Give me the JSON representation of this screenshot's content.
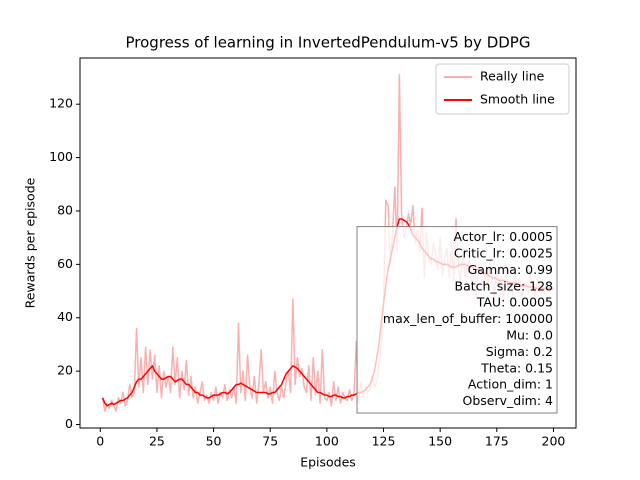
{
  "chart_data": {
    "type": "line",
    "title": "Progress of learning in InvertedPendulum-v5 by DDPG",
    "xlabel": "Episodes",
    "ylabel": "Rewards per episode",
    "x": [
      1,
      2,
      3,
      4,
      5,
      6,
      7,
      8,
      9,
      10,
      11,
      12,
      13,
      14,
      15,
      16,
      17,
      18,
      19,
      20,
      21,
      22,
      23,
      24,
      25,
      26,
      27,
      28,
      29,
      30,
      31,
      32,
      33,
      34,
      35,
      36,
      37,
      38,
      39,
      40,
      41,
      42,
      43,
      44,
      45,
      46,
      47,
      48,
      49,
      50,
      51,
      52,
      53,
      54,
      55,
      56,
      57,
      58,
      59,
      60,
      61,
      62,
      63,
      64,
      65,
      66,
      67,
      68,
      69,
      70,
      71,
      72,
      73,
      74,
      75,
      76,
      77,
      78,
      79,
      80,
      81,
      82,
      83,
      84,
      85,
      86,
      87,
      88,
      89,
      90,
      91,
      92,
      93,
      94,
      95,
      96,
      97,
      98,
      99,
      100,
      101,
      102,
      103,
      104,
      105,
      106,
      107,
      108,
      109,
      110,
      111,
      112,
      113,
      114,
      115,
      116,
      117,
      118,
      119,
      120,
      121,
      122,
      123,
      124,
      125,
      126,
      127,
      128,
      129,
      130,
      131,
      132,
      133,
      134,
      135,
      136,
      137,
      138,
      139,
      140,
      141,
      142,
      143,
      144,
      145,
      146,
      147,
      148,
      149,
      150,
      151,
      152,
      153,
      154,
      155,
      156,
      157,
      158,
      159,
      160,
      161,
      162,
      163,
      164,
      165,
      166,
      167,
      168,
      169,
      170,
      171,
      172,
      173,
      174,
      175,
      176,
      177,
      178,
      179,
      180,
      181,
      182,
      183,
      184,
      185,
      186,
      187,
      188,
      189,
      190,
      191,
      192,
      193,
      194,
      195,
      196,
      197,
      198,
      199,
      200
    ],
    "series": [
      {
        "name": "Really line",
        "color": "#f8b0b0",
        "values": [
          10,
          5,
          8,
          6,
          9,
          7,
          5,
          10,
          8,
          12,
          7,
          9,
          15,
          10,
          12,
          36,
          14,
          25,
          12,
          29,
          15,
          28,
          17,
          26,
          12,
          22,
          10,
          20,
          14,
          18,
          12,
          29,
          15,
          25,
          10,
          20,
          13,
          24,
          11,
          18,
          10,
          14,
          8,
          12,
          16,
          9,
          11,
          8,
          12,
          9,
          14,
          8,
          12,
          10,
          15,
          9,
          13,
          10,
          14,
          8,
          38,
          12,
          20,
          9,
          26,
          14,
          10,
          18,
          8,
          15,
          28,
          12,
          16,
          10,
          14,
          8,
          20,
          12,
          9,
          14,
          10,
          16,
          20,
          12,
          47,
          15,
          25,
          18,
          21,
          14,
          12,
          22,
          9,
          25,
          11,
          20,
          8,
          28,
          10,
          9,
          12,
          7,
          16,
          9,
          14,
          8,
          12,
          10,
          9,
          13,
          9,
          12,
          31,
          8,
          16,
          10,
          14,
          12,
          13,
          18,
          14,
          16,
          22,
          30,
          45,
          84,
          82,
          60,
          72,
          89,
          65,
          131,
          78,
          70,
          72,
          79,
          75,
          82,
          68,
          73,
          65,
          81,
          55,
          72,
          62,
          60,
          68,
          64,
          58,
          70,
          56,
          62,
          66,
          55,
          67,
          54,
          77,
          60,
          52,
          64,
          55,
          59,
          62,
          50,
          58,
          48,
          60,
          56,
          52,
          58,
          50,
          62,
          54,
          48,
          58,
          52,
          55,
          46,
          60,
          50,
          53,
          48,
          57,
          50,
          55,
          47,
          53,
          51,
          49,
          56,
          52,
          48,
          55,
          50,
          54,
          49,
          53,
          51,
          52,
          50
        ]
      },
      {
        "name": "Smooth line",
        "color": "#ff0000",
        "values": [
          10,
          8,
          7,
          7.5,
          8,
          7.5,
          8,
          8.5,
          9,
          9,
          9.5,
          10,
          11,
          12,
          14,
          16,
          17,
          17,
          18,
          19,
          20,
          21,
          22,
          20,
          19,
          18,
          17,
          17,
          17.5,
          18,
          18,
          17,
          16,
          16.5,
          17,
          17,
          16,
          15,
          15,
          14,
          13,
          12,
          12,
          11,
          11,
          10.5,
          10,
          10,
          10.5,
          11,
          11,
          11,
          11.5,
          12,
          12,
          11.5,
          12,
          13,
          14,
          15,
          15,
          15.5,
          15,
          14.5,
          14,
          13.5,
          13,
          12.5,
          12,
          12,
          12,
          12,
          12,
          11.5,
          11.5,
          12,
          12,
          13,
          14,
          15,
          17,
          19,
          20,
          21,
          22,
          21.5,
          21,
          20,
          19,
          18,
          17,
          16,
          15,
          14,
          13,
          12,
          12,
          11.5,
          11,
          11,
          10.5,
          10.5,
          11,
          11,
          10.5,
          10.5,
          10,
          10,
          10.5,
          10.5,
          11,
          11,
          11.5,
          12,
          12,
          12.5,
          13,
          14,
          15,
          17,
          20,
          25,
          30,
          38,
          45,
          52,
          58,
          62,
          66,
          70,
          74,
          77,
          77,
          76.5,
          76,
          75,
          73,
          71,
          70,
          69,
          68,
          66,
          65,
          64,
          63,
          62,
          62,
          61,
          61,
          60.5,
          60,
          60,
          60,
          59.5,
          59,
          59,
          59,
          59.5,
          60,
          60,
          60,
          59.5,
          59,
          59,
          58.5,
          58,
          58,
          57.5,
          57,
          56.5,
          56,
          55.5,
          55,
          55,
          54.5,
          54,
          54,
          54,
          53.5,
          53.5,
          53,
          53,
          53,
          52.5,
          52.5,
          52,
          52,
          52,
          51.5,
          51.5,
          51.5,
          51,
          51,
          51,
          51,
          51,
          51,
          51,
          51,
          51
        ]
      }
    ],
    "xlim": [
      -8.95,
      209.95
    ],
    "ylim": [
      -1.3,
      137.3
    ],
    "xticks": [
      0,
      25,
      50,
      75,
      100,
      125,
      150,
      175,
      200
    ],
    "yticks": [
      0,
      20,
      40,
      60,
      80,
      100,
      120
    ],
    "legend": "upper right",
    "text_box": [
      "Actor_lr: 0.0005",
      "Critic_lr: 0.0025",
      "Gamma: 0.99",
      "Batch_size: 128",
      "TAU: 0.0005",
      "max_len_of_buffer: 100000",
      "Mu: 0.0",
      "Sigma: 0.2",
      "Theta: 0.15",
      "Action_dim: 1",
      "Observ_dim: 4"
    ]
  }
}
